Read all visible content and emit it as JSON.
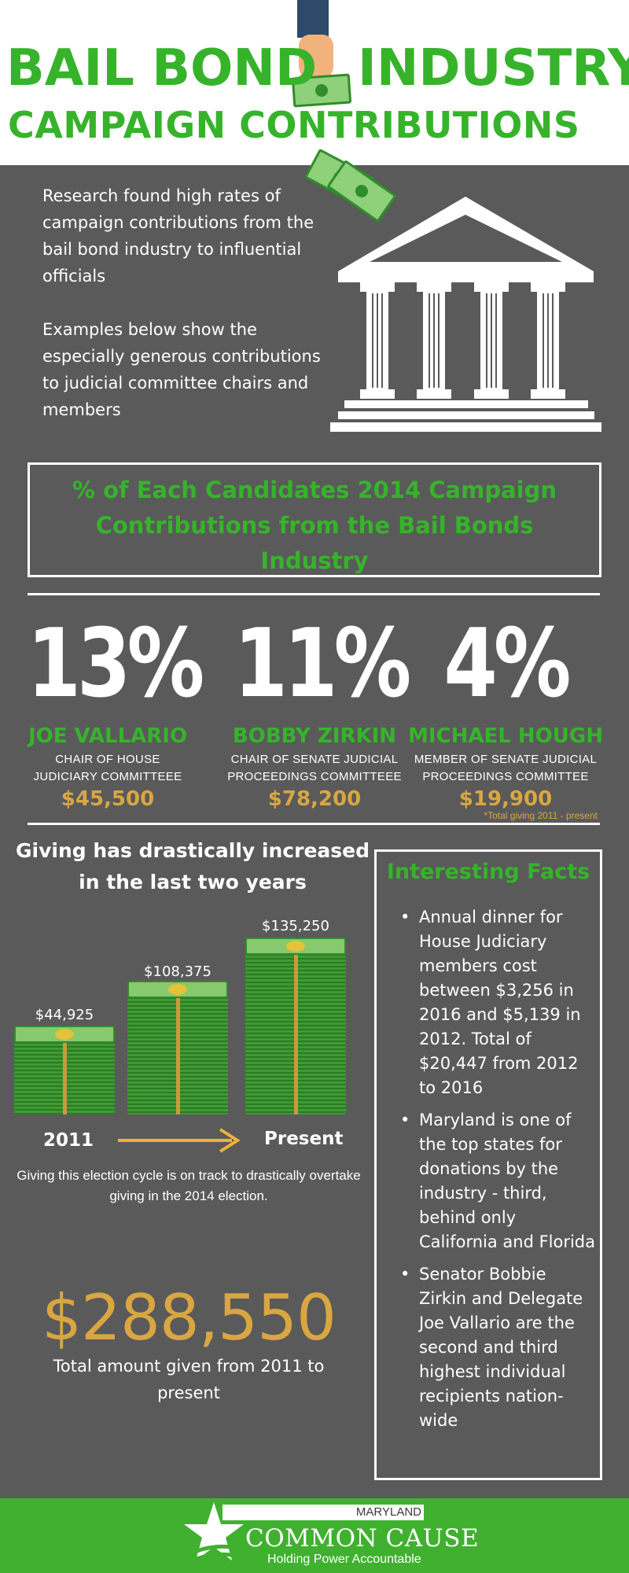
{
  "header": {
    "title_line1_a": "BAIL BOND",
    "title_line1_b": "INDUSTRY",
    "title_line2": "CAMPAIGN CONTRIBUTIONS"
  },
  "intro": {
    "paragraph1": "Research found high rates of campaign contributions from the bail bond industry to influential officials",
    "paragraph2": "Examples below show the especially generous contributions to judicial committee chairs and members"
  },
  "section_title": "% of Each Candidates 2014 Campaign Contributions from the Bail Bonds Industry",
  "stats": [
    {
      "percent": "13%",
      "name": "JOE VALLARIO",
      "role_line1": "CHAIR OF HOUSE",
      "role_line2": "JUDICIARY COMMITTEEE",
      "amount": "$45,500"
    },
    {
      "percent": "11%",
      "name": "BOBBY ZIRKIN",
      "role_line1": "CHAIR OF SENATE JUDICIAL",
      "role_line2": "PROCEEDINGS COMMITTEEE",
      "amount": "$78,200"
    },
    {
      "percent": "4%",
      "name": "MICHAEL HOUGH",
      "role_line1": "MEMBER OF SENATE JUDICIAL",
      "role_line2": "PROCEEDINGS COMMITTEE",
      "amount": "$19,900"
    }
  ],
  "footnote": "*Total giving 2011 - present",
  "giving": {
    "title": "Giving has drastically increased in the last two  years",
    "values": [
      {
        "label": "$44,925",
        "value": 44925
      },
      {
        "label": "$108,375",
        "value": 108375
      },
      {
        "label": "$135,250",
        "value": 135250
      }
    ],
    "start_label": "2011",
    "end_label": "Present",
    "note": "Giving this election cycle is on track to drastically overtake giving in the 2014 election."
  },
  "total": {
    "amount": "$288,550",
    "label": "Total amount given from 2011 to present"
  },
  "facts": {
    "title": "Interesting Facts",
    "items": [
      "Annual dinner for House Judiciary members cost between $3,256 in 2016 and $5,139 in 2012. Total of $20,447 from 2012 to 2016",
      "Maryland is one of the top states for donations by the industry - third, behind only California and Florida",
      "Senator Bobbie Zirkin and Delegate Joe Vallario are the second and third highest individual recipients nation-wide"
    ]
  },
  "footer": {
    "state": "MARYLAND",
    "org": "COMMON CAUSE",
    "tagline": "Holding Power Accountable"
  },
  "colors": {
    "green": "#36b32b",
    "gold": "#d9a642",
    "background": "#5a5a5a",
    "footer": "#3fb12f"
  },
  "icons": {
    "hand": "hand-holding-money-icon",
    "bills": "money-bills-icon",
    "court": "courthouse-icon",
    "arrow": "arrow-right-icon",
    "logo": "star-logo-icon"
  }
}
